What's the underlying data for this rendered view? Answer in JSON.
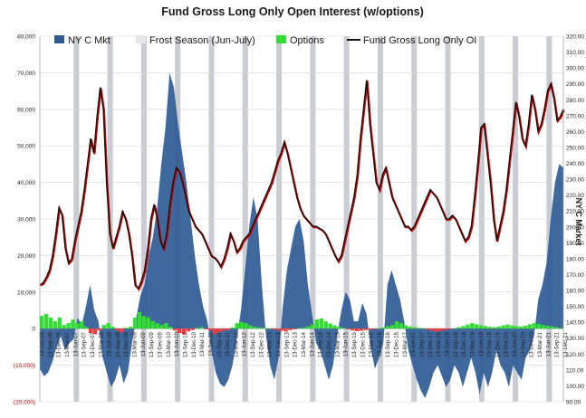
{
  "chart_data": {
    "type": "area",
    "title": "Fund Gross Long Only Open Interest (w/options)",
    "ylabel": "",
    "y2label": "NY C Market",
    "ylim": [
      -20000,
      80000
    ],
    "y2lim": [
      90,
      320
    ],
    "yticks": [
      "80,000",
      "70,000",
      "60,000",
      "50,000",
      "40,000",
      "30,000",
      "20,000",
      "10,000",
      "0",
      "(10,000)",
      "(20,000)"
    ],
    "y2ticks": [
      "320.00",
      "310.00",
      "300.00",
      "290.00",
      "280.00",
      "270.00",
      "260.00",
      "250.00",
      "240.00",
      "230.00",
      "220.00",
      "210.00",
      "200.00",
      "190.00",
      "180.00",
      "170.00",
      "160.00",
      "150.00",
      "140.00",
      "130.00",
      "120.00",
      "110.00",
      "100.00",
      "90.00"
    ],
    "x_start_label": "13-Jun-06",
    "x_step_months": 3,
    "x_labels": [
      "13-Jun-06",
      "13-Sep-06",
      "13-Dec-06",
      "13-Mar-07",
      "13-Jun-07",
      "13-Sep-07",
      "13-Dec-07",
      "13-Mar-08",
      "13-Jun-08",
      "13-Sep-08",
      "13-Dec-08",
      "13-Mar-09",
      "13-Jun-09",
      "13-Sep-09",
      "13-Dec-09",
      "13-Mar-10",
      "13-Jun-10",
      "13-Sep-10",
      "13-Dec-10",
      "13-Mar-11",
      "13-Jun-11",
      "13-Sep-11",
      "13-Dec-11",
      "13-Mar-12",
      "13-Jun-12",
      "13-Sep-12",
      "13-Dec-12",
      "13-Mar-13",
      "13-Jun-13",
      "13-Sep-13",
      "13-Dec-13",
      "13-Mar-14",
      "13-Jun-14",
      "13-Sep-14",
      "13-Dec-14",
      "13-Mar-15",
      "13-Jun-15",
      "13-Sep-15",
      "13-Dec-15",
      "13-Mar-16",
      "13-Jun-16",
      "13-Sep-16",
      "13-Dec-16",
      "13-Mar-17",
      "13-Jun-17",
      "13-Sep-17",
      "13-Dec-17",
      "13-Mar-18",
      "13-Jun-18",
      "13-Sep-18",
      "13-Dec-18",
      "13-Mar-19",
      "13-Jun-19",
      "13-Sep-19",
      "13-Dec-19",
      "13-Mar-20",
      "13-Jun-20",
      "13-Sep-20",
      "13-Dec-20",
      "13-Mar-21",
      "13-Jun-21",
      "13-Sep-21",
      "13-Dec-21"
    ],
    "frost_seasons": [
      "2007",
      "2008",
      "2009",
      "2010",
      "2011",
      "2012",
      "2013",
      "2014",
      "2015",
      "2016",
      "2017",
      "2018",
      "2019",
      "2020",
      "2021"
    ],
    "legend": [
      "NY C Mkt",
      "Frost Season (Jun-July)",
      "Options",
      "Fund Gross Long Only OI"
    ],
    "legend_placement": "top",
    "colors": {
      "ny_c_mkt": "#2f5b95",
      "frost": "#c9ccd2",
      "options_pos": "#33dd33",
      "options_neg": "#ff3b3b",
      "oi_line": "#111111",
      "oi_shadow": "#cc0000",
      "grid": "#d6d6d6"
    },
    "series": [
      {
        "name": "NY C Mkt",
        "axis": "left",
        "values": [
          -11000,
          -13000,
          -12000,
          -9000,
          -5000,
          -2000,
          -6000,
          -4000,
          -3000,
          3000,
          1000,
          6000,
          12000,
          5000,
          2000,
          -8000,
          -12000,
          -16000,
          -14000,
          -10000,
          -15000,
          -12000,
          -4000,
          3000,
          9000,
          12000,
          20000,
          25000,
          33000,
          45000,
          55000,
          70000,
          66000,
          56000,
          48000,
          40000,
          30000,
          20000,
          12000,
          6000,
          2000,
          -6000,
          -12000,
          -15000,
          -16000,
          -14000,
          -10000,
          -3000,
          5000,
          16000,
          28000,
          36000,
          30000,
          12000,
          -2000,
          -10000,
          -14000,
          -8000,
          6000,
          16000,
          22000,
          28000,
          30000,
          24000,
          12000,
          4000,
          -4000,
          -6000,
          -10000,
          -14000,
          -10000,
          -2000,
          5000,
          10000,
          8000,
          2000,
          2000,
          7000,
          4000,
          -5000,
          -11000,
          -8000,
          -4000,
          12000,
          16000,
          12000,
          8000,
          2000,
          -6000,
          -10000,
          -14000,
          -17000,
          -19000,
          -16000,
          -12000,
          -10000,
          -13000,
          -16000,
          -14000,
          -10000,
          -12000,
          -16000,
          -12000,
          -8000,
          -12000,
          -18000,
          -12000,
          -16000,
          -12000,
          -6000,
          -10000,
          -12000,
          -16000,
          -10000,
          -12000,
          -14000,
          -8000,
          -6000,
          -2000,
          8000,
          12000,
          18000,
          30000,
          40000,
          45000,
          44000
        ]
      },
      {
        "name": "Options",
        "axis": "left",
        "values": [
          3500,
          4000,
          3000,
          2000,
          3000,
          1000,
          1500,
          2500,
          1500,
          2000,
          500,
          -1200,
          -1500,
          -500,
          1000,
          1500,
          500,
          -500,
          -1000,
          200,
          500,
          3000,
          4500,
          3500,
          3000,
          2000,
          1500,
          1000,
          1500,
          500,
          -500,
          -1200,
          -1500,
          -800,
          -400,
          200,
          400,
          -200,
          -500,
          -1500,
          -1000,
          -600,
          -400,
          300,
          1500,
          1800,
          1500,
          900,
          500,
          300,
          200,
          100,
          -200,
          -400,
          -600,
          -800,
          -400,
          -200,
          100,
          200,
          600,
          1200,
          2500,
          2800,
          2000,
          1400,
          900,
          500,
          200,
          -200,
          -500,
          -700,
          -600,
          -400,
          -300,
          -100,
          100,
          300,
          700,
          1000,
          2000,
          1500,
          900,
          600,
          400,
          200,
          100,
          -300,
          -600,
          -800,
          -600,
          -400,
          -200,
          100,
          400,
          700,
          1100,
          1500,
          1200,
          900,
          700,
          500,
          400,
          600,
          900,
          1100,
          900,
          700,
          600,
          800,
          1200,
          1500,
          1300,
          1000,
          800,
          600,
          400,
          200
        ]
      },
      {
        "name": "Fund Gross Long Only OI",
        "axis": "left",
        "values": [
          12000,
          12500,
          14000,
          16000,
          20000,
          26000,
          33000,
          31000,
          22000,
          18000,
          19000,
          24000,
          28000,
          32000,
          38000,
          45000,
          52000,
          48000,
          58000,
          66000,
          60000,
          40000,
          26000,
          22000,
          25000,
          28000,
          32000,
          30000,
          26000,
          20000,
          12000,
          11000,
          13000,
          16000,
          22000,
          30000,
          34000,
          30000,
          24000,
          22000,
          26000,
          34000,
          40000,
          44000,
          43000,
          40000,
          36000,
          32000,
          30000,
          28000,
          27000,
          26000,
          24000,
          22000,
          20000,
          19500,
          18500,
          17000,
          19000,
          22000,
          26000,
          24000,
          21000,
          22000,
          24000,
          25000,
          26000,
          28000,
          30000,
          32000,
          34000,
          36000,
          38000,
          40000,
          43000,
          46000,
          48000,
          51000,
          48000,
          44000,
          40000,
          36000,
          33000,
          31000,
          30000,
          29000,
          28000,
          28000,
          27500,
          27000,
          26000,
          24000,
          22000,
          20000,
          18500,
          20000,
          24000,
          28000,
          32000,
          36000,
          42000,
          52000,
          60000,
          68000,
          56000,
          48000,
          40000,
          38000,
          42000,
          44000,
          40000,
          36000,
          34000,
          32000,
          30000,
          28000,
          28000,
          27000,
          28000,
          30000,
          32000,
          34000,
          36000,
          38000,
          37000,
          36000,
          34000,
          32000,
          30000,
          30000,
          31000,
          30000,
          28000,
          26000,
          24000,
          25000,
          28000,
          36000,
          45000,
          55000,
          56000,
          48000,
          40000,
          30000,
          24000,
          28000,
          32000,
          38000,
          46000,
          54000,
          62000,
          58000,
          52000,
          50000,
          56000,
          64000,
          60000,
          54000,
          56000,
          60000,
          65000,
          67000,
          63000,
          57000,
          58000,
          60000
        ]
      }
    ]
  }
}
